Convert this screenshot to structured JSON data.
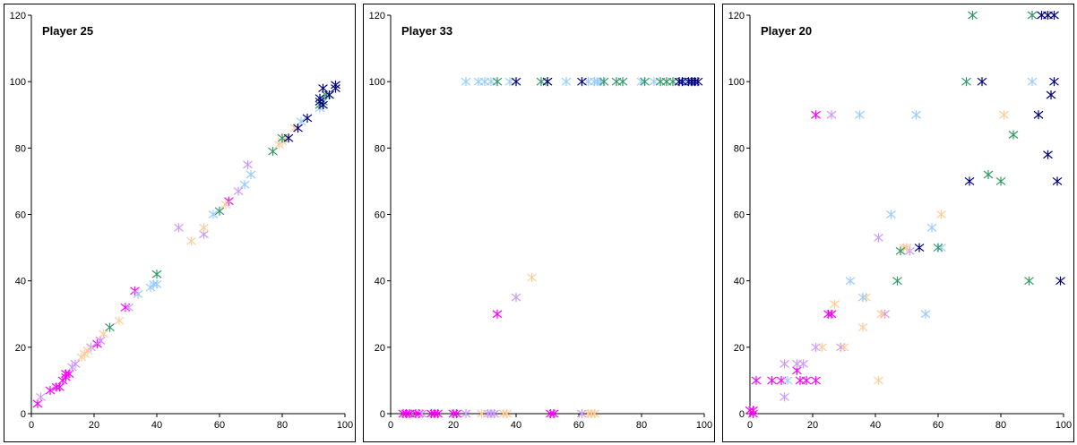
{
  "chart_data": [
    {
      "type": "scatter",
      "title": "Player 25",
      "xlim": [
        0,
        100
      ],
      "ylim": [
        0,
        120
      ],
      "xticks": [
        0,
        20,
        40,
        60,
        80,
        100
      ],
      "yticks": [
        0,
        20,
        40,
        60,
        80,
        100,
        120
      ],
      "marker": "asterisk",
      "grid": false,
      "colors": [
        "#ff00ff",
        "#cc99ff",
        "#ffcc99",
        "#99ccff",
        "#339966",
        "#000080"
      ],
      "series": [
        {
          "color": "#ff00ff",
          "points": [
            [
              2,
              3
            ],
            [
              6,
              7
            ],
            [
              8,
              8
            ],
            [
              9,
              8
            ],
            [
              10,
              10
            ],
            [
              11,
              11
            ],
            [
              11,
              12
            ],
            [
              12,
              12
            ],
            [
              21,
              21
            ],
            [
              22,
              22
            ],
            [
              30,
              32
            ],
            [
              33,
              37
            ],
            [
              63,
              64
            ]
          ]
        },
        {
          "color": "#cc99ff",
          "points": [
            [
              3,
              5
            ],
            [
              13,
              14
            ],
            [
              14,
              15
            ],
            [
              19,
              20
            ],
            [
              22,
              22
            ],
            [
              31,
              32
            ],
            [
              47,
              56
            ],
            [
              55,
              54
            ],
            [
              66,
              67
            ],
            [
              69,
              75
            ]
          ]
        },
        {
          "color": "#ffcc99",
          "points": [
            [
              16,
              17
            ],
            [
              17,
              18
            ],
            [
              18,
              19
            ],
            [
              23,
              24
            ],
            [
              28,
              28
            ],
            [
              51,
              52
            ],
            [
              55,
              56
            ],
            [
              62,
              63
            ],
            [
              79,
              81
            ],
            [
              80,
              82
            ],
            [
              81,
              83
            ],
            [
              84,
              86
            ]
          ]
        },
        {
          "color": "#99ccff",
          "points": [
            [
              34,
              36
            ],
            [
              38,
              38
            ],
            [
              39,
              39
            ],
            [
              40,
              39
            ],
            [
              58,
              60
            ],
            [
              68,
              69
            ],
            [
              70,
              72
            ],
            [
              86,
              88
            ],
            [
              92,
              92
            ]
          ]
        },
        {
          "color": "#339966",
          "points": [
            [
              25,
              26
            ],
            [
              40,
              42
            ],
            [
              60,
              61
            ],
            [
              77,
              79
            ],
            [
              80,
              83
            ],
            [
              92,
              93
            ],
            [
              93,
              94
            ],
            [
              94,
              96
            ]
          ]
        },
        {
          "color": "#000080",
          "points": [
            [
              82,
              83
            ],
            [
              85,
              86
            ],
            [
              88,
              89
            ],
            [
              92,
              94
            ],
            [
              92,
              95
            ],
            [
              93,
              93
            ],
            [
              93,
              98
            ],
            [
              95,
              96
            ],
            [
              97,
              98
            ],
            [
              97,
              99
            ]
          ]
        }
      ]
    },
    {
      "type": "scatter",
      "title": "Player 33",
      "xlim": [
        0,
        100
      ],
      "ylim": [
        0,
        120
      ],
      "xticks": [
        0,
        20,
        40,
        60,
        80,
        100
      ],
      "yticks": [
        0,
        20,
        40,
        60,
        80,
        100,
        120
      ],
      "marker": "asterisk",
      "grid": false,
      "colors": [
        "#ff00ff",
        "#cc99ff",
        "#ffcc99",
        "#99ccff",
        "#339966",
        "#000080"
      ],
      "series": [
        {
          "color": "#ff00ff",
          "points": [
            [
              4,
              0
            ],
            [
              5,
              0
            ],
            [
              6,
              0
            ],
            [
              8,
              0
            ],
            [
              9,
              0
            ],
            [
              13,
              0
            ],
            [
              14,
              0
            ],
            [
              15,
              0
            ],
            [
              20,
              0
            ],
            [
              21,
              0
            ],
            [
              34,
              30
            ],
            [
              51,
              0
            ],
            [
              52,
              0
            ]
          ]
        },
        {
          "color": "#cc99ff",
          "points": [
            [
              10,
              0
            ],
            [
              24,
              0
            ],
            [
              31,
              0
            ],
            [
              32,
              0
            ],
            [
              33,
              0
            ],
            [
              40,
              35
            ],
            [
              61,
              0
            ]
          ]
        },
        {
          "color": "#ffcc99",
          "points": [
            [
              29,
              0
            ],
            [
              36,
              0
            ],
            [
              37,
              0
            ],
            [
              45,
              41
            ],
            [
              63,
              0
            ],
            [
              64,
              0
            ],
            [
              65,
              0
            ]
          ]
        },
        {
          "color": "#99ccff",
          "points": [
            [
              24,
              100
            ],
            [
              28,
              100
            ],
            [
              30,
              100
            ],
            [
              32,
              100
            ],
            [
              38,
              100
            ],
            [
              56,
              100
            ],
            [
              63,
              100
            ],
            [
              65,
              100
            ],
            [
              66,
              100
            ],
            [
              67,
              100
            ],
            [
              80,
              100
            ],
            [
              84,
              100
            ],
            [
              92,
              100
            ],
            [
              94,
              100
            ]
          ]
        },
        {
          "color": "#339966",
          "points": [
            [
              34,
              100
            ],
            [
              48,
              100
            ],
            [
              50,
              100
            ],
            [
              68,
              100
            ],
            [
              72,
              100
            ],
            [
              74,
              100
            ],
            [
              81,
              100
            ],
            [
              86,
              100
            ],
            [
              88,
              100
            ],
            [
              90,
              100
            ],
            [
              96,
              100
            ]
          ]
        },
        {
          "color": "#000080",
          "points": [
            [
              40,
              100
            ],
            [
              50,
              100
            ],
            [
              61,
              100
            ],
            [
              92,
              100
            ],
            [
              93,
              100
            ],
            [
              95,
              100
            ],
            [
              96,
              100
            ],
            [
              97,
              100
            ],
            [
              98,
              100
            ]
          ]
        }
      ]
    },
    {
      "type": "scatter",
      "title": "Player 20",
      "xlim": [
        0,
        100
      ],
      "ylim": [
        0,
        120
      ],
      "xticks": [
        0,
        20,
        40,
        60,
        80,
        100
      ],
      "yticks": [
        0,
        20,
        40,
        60,
        80,
        100,
        120
      ],
      "marker": "asterisk",
      "grid": false,
      "colors": [
        "#ff00ff",
        "#cc99ff",
        "#ffcc99",
        "#99ccff",
        "#339966",
        "#000080"
      ],
      "series": [
        {
          "color": "#ff00ff",
          "points": [
            [
              0,
              1
            ],
            [
              1,
              0
            ],
            [
              1,
              1
            ],
            [
              2,
              10
            ],
            [
              7,
              10
            ],
            [
              10,
              10
            ],
            [
              15,
              13
            ],
            [
              16,
              10
            ],
            [
              18,
              10
            ],
            [
              21,
              10
            ],
            [
              21,
              90
            ],
            [
              25,
              30
            ],
            [
              26,
              30
            ]
          ]
        },
        {
          "color": "#cc99ff",
          "points": [
            [
              11,
              5
            ],
            [
              11,
              15
            ],
            [
              15,
              15
            ],
            [
              17,
              15
            ],
            [
              21,
              20
            ],
            [
              26,
              90
            ],
            [
              29,
              20
            ],
            [
              41,
              53
            ],
            [
              43,
              30
            ],
            [
              50,
              50
            ],
            [
              51,
              49
            ]
          ]
        },
        {
          "color": "#ffcc99",
          "points": [
            [
              23,
              20
            ],
            [
              27,
              33
            ],
            [
              30,
              20
            ],
            [
              36,
              26
            ],
            [
              37,
              35
            ],
            [
              41,
              10
            ],
            [
              42,
              30
            ],
            [
              49,
              50
            ],
            [
              50,
              50
            ],
            [
              61,
              60
            ],
            [
              81,
              90
            ]
          ]
        },
        {
          "color": "#99ccff",
          "points": [
            [
              12,
              10
            ],
            [
              32,
              40
            ],
            [
              35,
              90
            ],
            [
              36,
              35
            ],
            [
              45,
              60
            ],
            [
              53,
              90
            ],
            [
              56,
              30
            ],
            [
              58,
              56
            ],
            [
              61,
              50
            ],
            [
              90,
              100
            ]
          ]
        },
        {
          "color": "#339966",
          "points": [
            [
              47,
              40
            ],
            [
              48,
              49
            ],
            [
              60,
              50
            ],
            [
              69,
              100
            ],
            [
              71,
              120
            ],
            [
              76,
              72
            ],
            [
              80,
              70
            ],
            [
              84,
              84
            ],
            [
              89,
              40
            ],
            [
              90,
              120
            ]
          ]
        },
        {
          "color": "#000080",
          "points": [
            [
              54,
              50
            ],
            [
              70,
              70
            ],
            [
              74,
              100
            ],
            [
              92,
              90
            ],
            [
              93,
              120
            ],
            [
              95,
              120
            ],
            [
              95,
              78
            ],
            [
              96,
              96
            ],
            [
              97,
              120
            ],
            [
              97,
              100
            ],
            [
              98,
              70
            ],
            [
              99,
              40
            ]
          ]
        }
      ]
    }
  ]
}
